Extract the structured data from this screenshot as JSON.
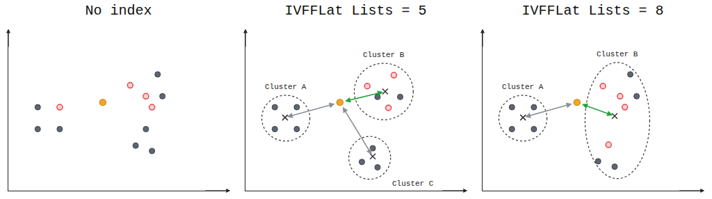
{
  "chart_data": [
    {
      "type": "scatter",
      "title": "No index",
      "tick_labels": false,
      "grid": false,
      "xlim": [
        0,
        10
      ],
      "ylim": [
        0,
        10
      ],
      "xticks": [],
      "yticks": [],
      "series": [
        {
          "color": "#5f6670",
          "marker": "circle",
          "x": [
            1.35,
            1.35,
            2.36,
            6.86,
            7.08,
            6.32,
            5.85,
            6.6
          ],
          "values": [
            5.26,
            3.88,
            3.88,
            7.33,
            5.95,
            3.88,
            2.84,
            2.5
          ]
        },
        {
          "color": "#e5484d",
          "marker": "ring",
          "x": [
            2.36,
            5.6,
            6.32,
            6.6
          ],
          "values": [
            5.26,
            6.64,
            5.95,
            5.26
          ]
        }
      ],
      "query": {
        "color": "#f5a623",
        "marker": "circle",
        "x": 4.34,
        "y": 5.56
      },
      "clusters": []
    },
    {
      "type": "scatter",
      "title": "IVFFLat Lists = 5",
      "tick_labels": false,
      "grid": false,
      "xlim": [
        0,
        10
      ],
      "ylim": [
        0,
        10
      ],
      "xticks": [],
      "yticks": [],
      "series": [
        {
          "color": "#5f6670",
          "marker": "circle",
          "x": [
            1.35,
            2.36,
            1.35,
            2.36,
            6.07,
            7.11,
            5.85,
            5.35,
            6.07
          ],
          "values": [
            5.26,
            5.26,
            3.88,
            3.88,
            5.91,
            5.91,
            2.67,
            1.81,
            1.47
          ]
        },
        {
          "color": "#e5484d",
          "marker": "ring",
          "x": [
            6.82,
            5.6,
            6.57
          ],
          "values": [
            7.28,
            6.59,
            5.22
          ]
        }
      ],
      "query": {
        "color": "#f5a623",
        "marker": "circle",
        "x": 4.34,
        "y": 5.56
      },
      "clusters": [
        {
          "label": "Cluster A",
          "marker": "x",
          "x": 1.82,
          "y": 4.61
        },
        {
          "label": "Cluster B",
          "marker": "x",
          "x": 6.42,
          "y": 6.25
        },
        {
          "label": "Cluster C",
          "marker": "x",
          "x": 5.85,
          "y": 2.16
        }
      ]
    },
    {
      "type": "scatter",
      "title": "IVFFLat Lists = 8",
      "tick_labels": false,
      "grid": false,
      "xlim": [
        0,
        10
      ],
      "ylim": [
        0,
        10
      ],
      "xticks": [],
      "yticks": [],
      "series": [
        {
          "color": "#5f6670",
          "marker": "circle",
          "x": [
            1.35,
            2.36,
            1.35,
            2.36,
            6.79,
            7.08,
            5.31,
            6.07
          ],
          "values": [
            5.26,
            5.26,
            3.88,
            3.88,
            7.33,
            5.95,
            1.85,
            1.51
          ]
        },
        {
          "color": "#e5484d",
          "marker": "ring",
          "x": [
            5.53,
            6.32,
            6.54,
            5.79
          ],
          "values": [
            6.59,
            5.95,
            5.26,
            2.89
          ]
        }
      ],
      "query": {
        "color": "#f5a623",
        "marker": "circle",
        "x": 4.34,
        "y": 5.56
      },
      "clusters": [
        {
          "label": "Cluster A",
          "marker": "x",
          "x": 1.86,
          "y": 4.61
        },
        {
          "label": "Cluster B",
          "marker": "x",
          "x": 6.07,
          "y": 4.7
        }
      ]
    }
  ]
}
